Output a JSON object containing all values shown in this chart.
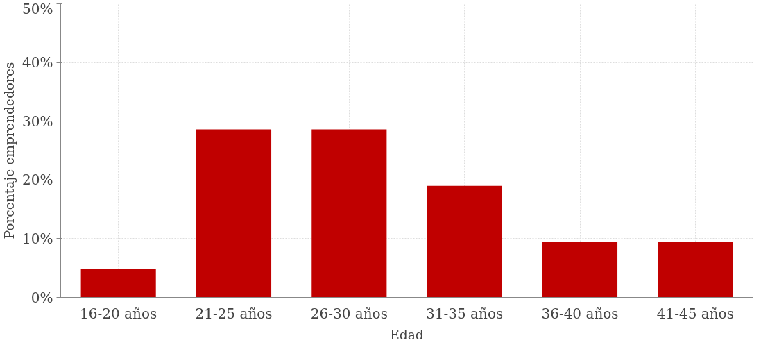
{
  "chart_data": {
    "type": "bar",
    "xlabel": "Edad",
    "ylabel": "Porcentaje emprendedores",
    "categories": [
      "16-20 años",
      "21-25 años",
      "26-30 años",
      "31-35 años",
      "36-40 años",
      "41-45 años"
    ],
    "values": [
      4.8,
      28.6,
      28.6,
      19.0,
      9.5,
      9.5
    ],
    "color": "#c00000",
    "ylim": [
      0,
      50
    ],
    "yticks": [
      {
        "value": 0,
        "label": "0%"
      },
      {
        "value": 10,
        "label": "10%"
      },
      {
        "value": 20,
        "label": "20%"
      },
      {
        "value": 30,
        "label": "30%"
      },
      {
        "value": 40,
        "label": "40%"
      },
      {
        "value": 50,
        "label": "50%"
      }
    ],
    "grid": true
  }
}
